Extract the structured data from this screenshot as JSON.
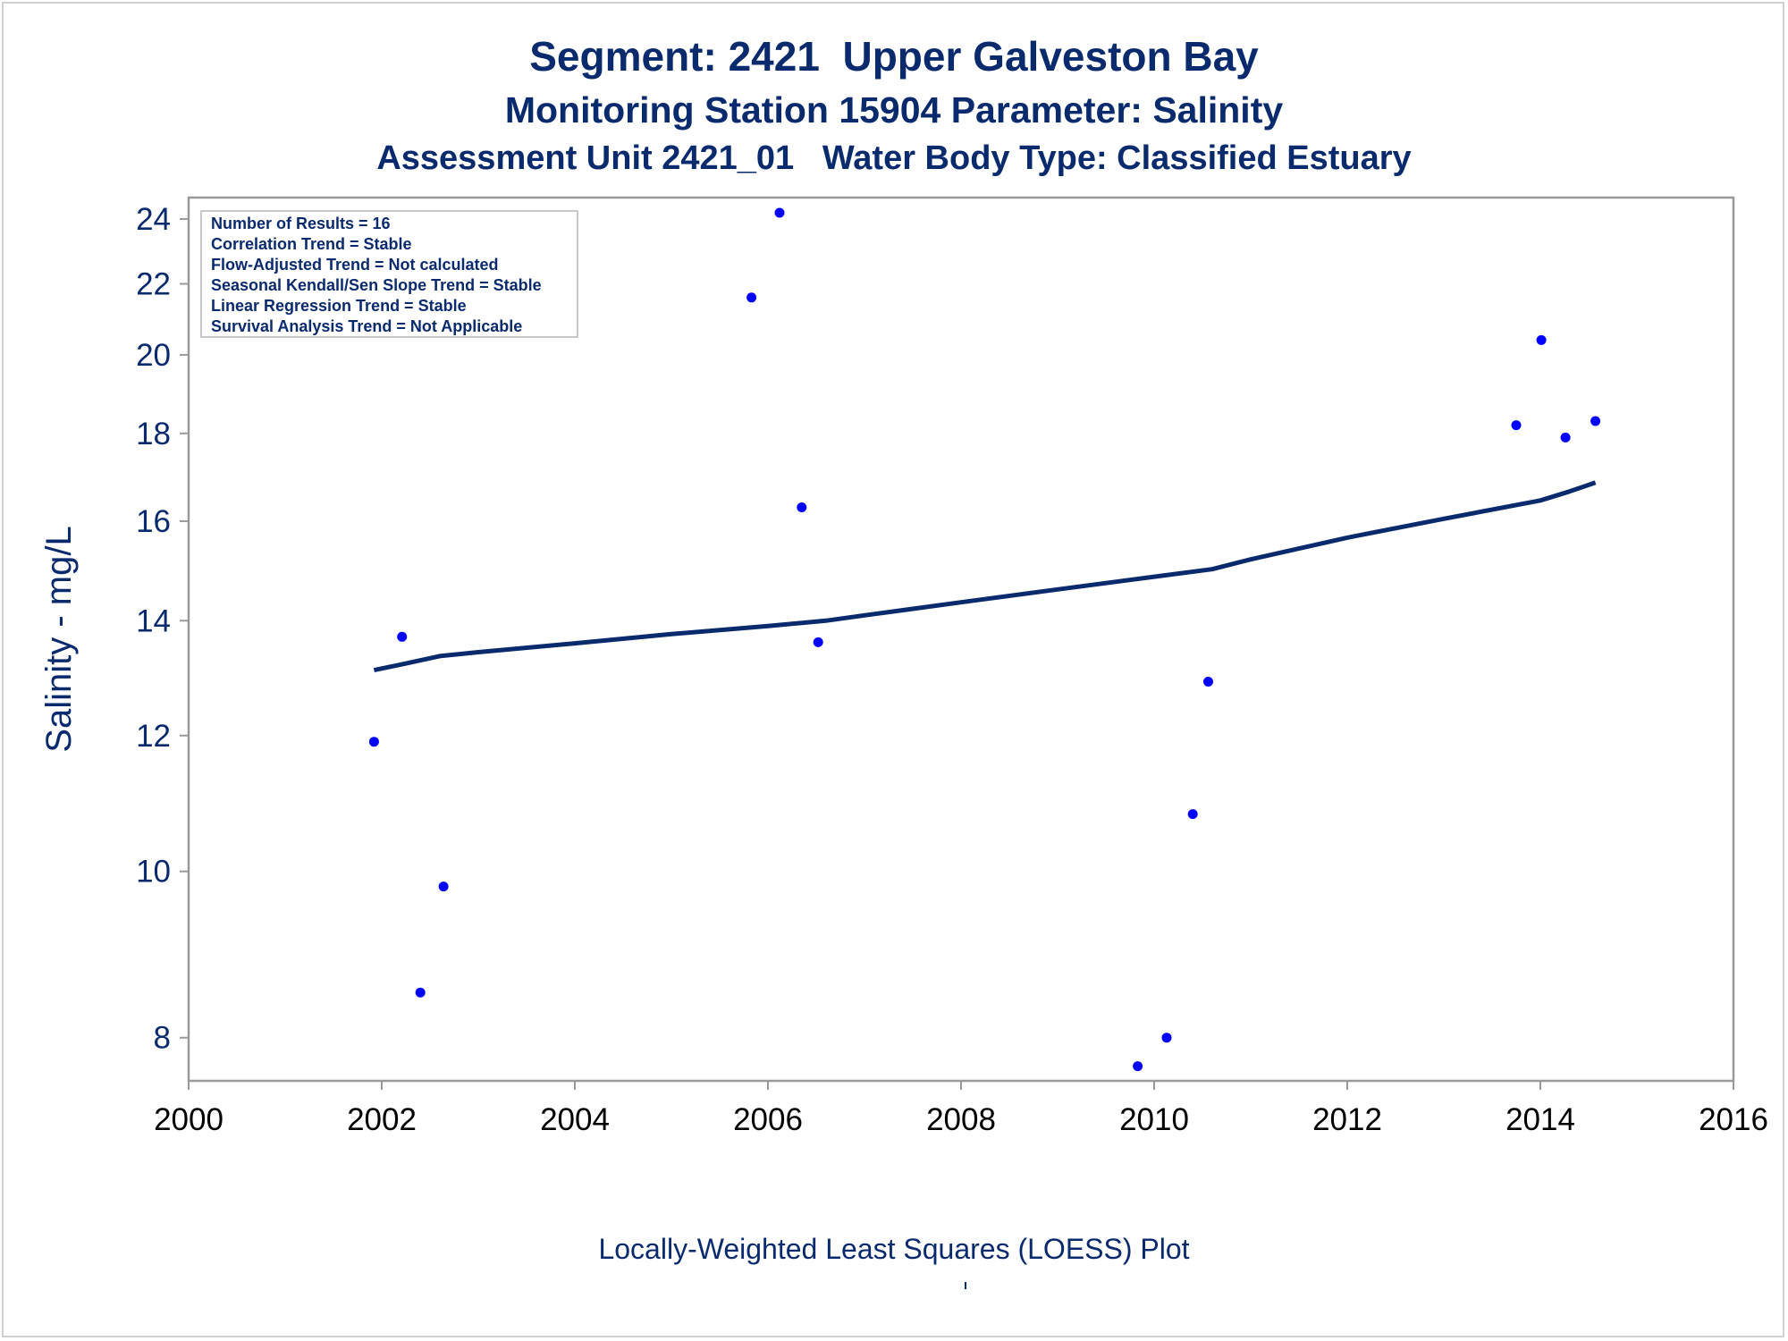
{
  "titles": {
    "line1": "Segment: 2421  Upper Galveston Bay",
    "line2": "Monitoring Station 15904 Parameter: Salinity",
    "line3": "Assessment Unit 2421_01   Water Body Type: Classified Estuary"
  },
  "footnote": "Locally-Weighted Least Squares (LOESS) Plot",
  "colors": {
    "text": "#0a2a6e",
    "points": "#0000ff",
    "loess_line": "#0a2a6e",
    "frame": "#9a9a9a"
  },
  "stats_box": [
    "Number of Results = 16",
    "Correlation Trend = Stable",
    "Flow-Adjusted Trend = Not calculated",
    "Seasonal Kendall/Sen Slope Trend = Stable",
    "Linear Regression Trend = Stable",
    "Survival Analysis Trend = Not Applicable"
  ],
  "chart_data": {
    "type": "scatter",
    "ylabel": "Salinity - mg/L",
    "xlabel": "",
    "y_scale": "log",
    "xlim": [
      2000,
      2016
    ],
    "ylim": [
      7.55,
      24.7
    ],
    "x_ticks": [
      2000,
      2002,
      2004,
      2006,
      2008,
      2010,
      2012,
      2014,
      2016
    ],
    "y_ticks": [
      8,
      10,
      12,
      14,
      16,
      18,
      20,
      22,
      24
    ],
    "series": [
      {
        "type": "scatter",
        "points": [
          {
            "x": 2001.92,
            "y": 11.9
          },
          {
            "x": 2002.21,
            "y": 13.7
          },
          {
            "x": 2002.4,
            "y": 8.5
          },
          {
            "x": 2002.64,
            "y": 9.8
          },
          {
            "x": 2005.83,
            "y": 21.6
          },
          {
            "x": 2006.12,
            "y": 24.2
          },
          {
            "x": 2006.35,
            "y": 16.3
          },
          {
            "x": 2006.52,
            "y": 13.6
          },
          {
            "x": 2009.83,
            "y": 7.7
          },
          {
            "x": 2010.13,
            "y": 8.0
          },
          {
            "x": 2010.4,
            "y": 10.8
          },
          {
            "x": 2010.56,
            "y": 12.9
          },
          {
            "x": 2013.75,
            "y": 18.2
          },
          {
            "x": 2014.01,
            "y": 20.4
          },
          {
            "x": 2014.26,
            "y": 17.9
          },
          {
            "x": 2014.57,
            "y": 18.3
          }
        ]
      },
      {
        "type": "line",
        "points": [
          {
            "x": 2001.92,
            "y": 13.1
          },
          {
            "x": 2002.2,
            "y": 13.2
          },
          {
            "x": 2002.6,
            "y": 13.35
          },
          {
            "x": 2003.0,
            "y": 13.42
          },
          {
            "x": 2004.0,
            "y": 13.58
          },
          {
            "x": 2005.0,
            "y": 13.75
          },
          {
            "x": 2006.0,
            "y": 13.9
          },
          {
            "x": 2006.6,
            "y": 14.0
          },
          {
            "x": 2007.0,
            "y": 14.1
          },
          {
            "x": 2008.0,
            "y": 14.35
          },
          {
            "x": 2009.0,
            "y": 14.6
          },
          {
            "x": 2010.0,
            "y": 14.85
          },
          {
            "x": 2010.6,
            "y": 15.0
          },
          {
            "x": 2011.0,
            "y": 15.2
          },
          {
            "x": 2012.0,
            "y": 15.65
          },
          {
            "x": 2013.0,
            "y": 16.05
          },
          {
            "x": 2014.0,
            "y": 16.45
          },
          {
            "x": 2014.3,
            "y": 16.65
          },
          {
            "x": 2014.57,
            "y": 16.85
          }
        ]
      }
    ]
  }
}
